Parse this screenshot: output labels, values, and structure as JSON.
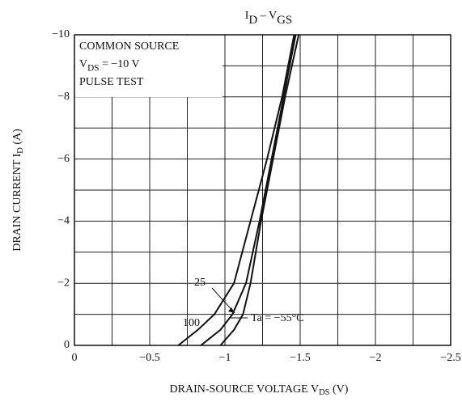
{
  "chart_data": {
    "type": "line",
    "title": [
      "I",
      "D",
      "  –  V",
      "GS"
    ],
    "x_label": [
      "DRAIN-SOURCE VOLTAGE  V",
      "DS",
      "  (V)"
    ],
    "y_label": [
      "DRAIN CURRENT  I",
      "D",
      "  (A)"
    ],
    "annotation_box": [
      [
        "COMMON SOURCE"
      ],
      [
        "V",
        "DS",
        " = −10 V"
      ],
      [
        "PULSE TEST"
      ]
    ],
    "xlim": [
      0,
      -2.5
    ],
    "ylim": [
      0,
      -10
    ],
    "xticks": [
      0,
      {
        "value": -0.5,
        "label": "−0.5"
      },
      {
        "value": -1,
        "label": "−1"
      },
      {
        "value": -1.5,
        "label": "−1.5"
      },
      {
        "value": -2,
        "label": "−2"
      },
      {
        "value": -2.5,
        "label": "−2.5"
      }
    ],
    "yticks": [
      0,
      {
        "value": -2,
        "label": "−2"
      },
      {
        "value": -4,
        "label": "−4"
      },
      {
        "value": -6,
        "label": "−6"
      },
      {
        "value": -8,
        "label": "−8"
      },
      {
        "value": -10,
        "label": "−10"
      }
    ],
    "minor_xticks": [
      -0.25,
      -0.75,
      -1.25,
      -1.75,
      -2.25
    ],
    "minor_yticks": [
      -1,
      -3,
      -5,
      -7,
      -9
    ],
    "grid": true,
    "series": [
      {
        "name": "100",
        "color": "#111111",
        "x": [
          -0.69,
          -0.82,
          -0.93,
          -1.06,
          -1.17,
          -1.28,
          -1.38,
          -1.46
        ],
        "values": [
          0,
          -0.5,
          -1,
          -2,
          -4,
          -6,
          -8,
          -10
        ]
      },
      {
        "name": "25",
        "color": "#111111",
        "x": [
          -0.84,
          -0.97,
          -1.05,
          -1.14,
          -1.23,
          -1.31,
          -1.39,
          -1.47
        ],
        "values": [
          0,
          -0.5,
          -1,
          -2,
          -4,
          -6,
          -8,
          -10
        ]
      },
      {
        "name": "Ta = −55°C",
        "color": "#111111",
        "x": [
          -0.97,
          -1.06,
          -1.12,
          -1.17,
          -1.24,
          -1.32,
          -1.4,
          -1.49
        ],
        "values": [
          0,
          -0.5,
          -1,
          -2,
          -4,
          -6,
          -8,
          -10
        ]
      }
    ]
  }
}
